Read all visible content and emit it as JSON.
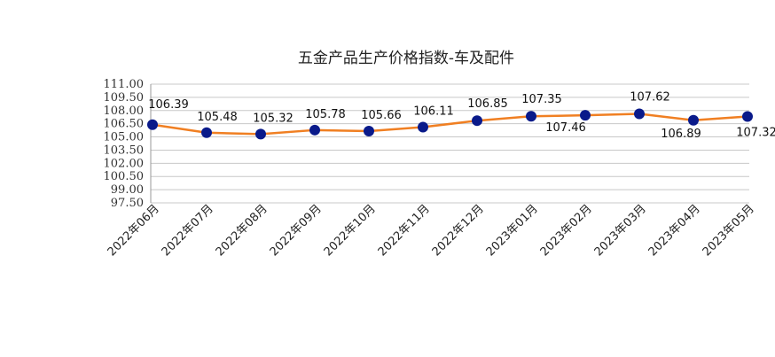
{
  "chart_data": {
    "type": "line",
    "title": "五金产品生产价格指数-车及配件",
    "categories": [
      "2022年06月",
      "2022年07月",
      "2022年08月",
      "2022年09月",
      "2022年10月",
      "2022年11月",
      "2022年12月",
      "2023年01月",
      "2023年02月",
      "2023年03月",
      "2023年04月",
      "2023年05月"
    ],
    "series": [
      {
        "values": [
          106.39,
          105.48,
          105.32,
          105.78,
          105.66,
          106.11,
          106.85,
          107.35,
          107.46,
          107.62,
          106.89,
          107.32
        ]
      }
    ],
    "data_labels": [
      "106.39",
      "105.48",
      "105.32",
      "105.78",
      "105.66",
      "106.11",
      "106.85",
      "107.35",
      "107.46",
      "107.62",
      "106.89",
      "107.32"
    ],
    "y_ticks": [
      "111.00",
      "109.50",
      "108.00",
      "106.50",
      "105.00",
      "103.50",
      "102.00",
      "100.50",
      "99.00",
      "97.50"
    ],
    "ylim": [
      97.5,
      111.0
    ],
    "grid": true,
    "legend": "none",
    "colors": {
      "line": "#f07f22",
      "marker": "#0a1a8a",
      "grid": "#c8c8c8"
    }
  }
}
